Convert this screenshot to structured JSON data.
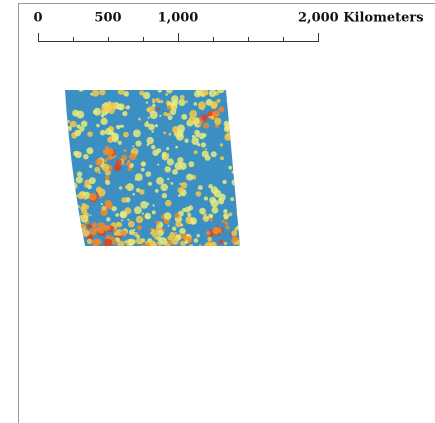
{
  "scale_bar": {
    "labels": [
      "0",
      "500",
      "1,000",
      "2,000 Kilometers"
    ]
  }
}
